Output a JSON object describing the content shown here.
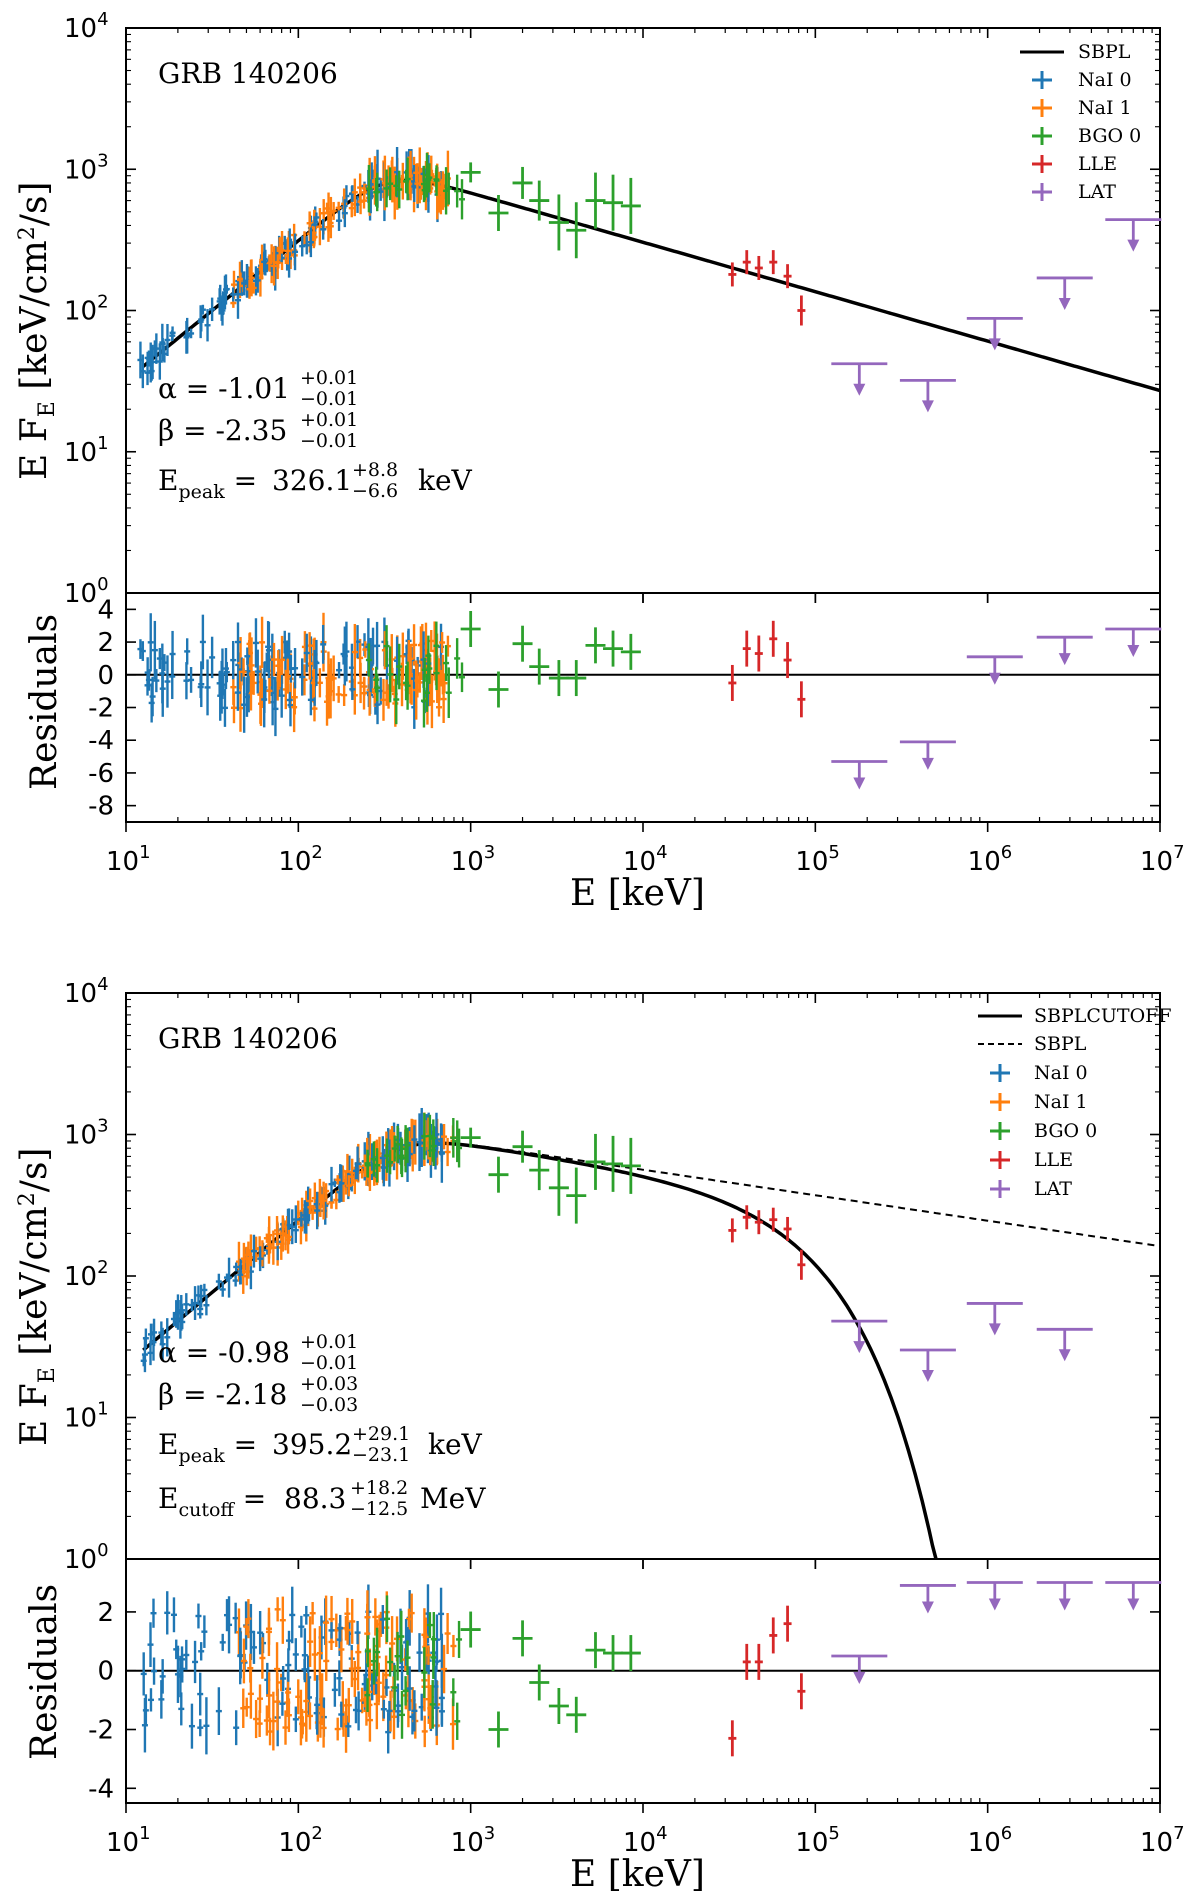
{
  "chart_data": [
    {
      "type": "scatter",
      "title": "GRB 140206",
      "model": "SBPL",
      "xlabel": "E [keV]",
      "ylabel_main": "E F_E [keV/cm²/s]",
      "ylabel_resid": "Residuals",
      "xlim": [
        10,
        10000000
      ],
      "ylim_main": [
        1,
        10000
      ],
      "ylim_resid": [
        -9,
        5
      ],
      "x_ticks": [
        "10^1",
        "10^2",
        "10^3",
        "10^4",
        "10^5",
        "10^6",
        "10^7"
      ],
      "y_ticks_main": [
        "10^0",
        "10^1",
        "10^2",
        "10^3",
        "10^4"
      ],
      "resid_ticks": [
        4,
        2,
        0,
        -2,
        -4,
        -6,
        -8
      ],
      "legend": [
        "SBPL",
        "NaI 0",
        "NaI 1",
        "BGO 0",
        "LLE",
        "LAT"
      ],
      "params": {
        "alpha": {
          "label": "α = -1.01",
          "up": "+0.01",
          "lo": "−0.01"
        },
        "beta": {
          "label": "β = -2.35",
          "up": "+0.01",
          "lo": "−0.01"
        },
        "epeak": {
          "label": "326.1",
          "up": "+8.8",
          "lo": "−6.6",
          "unit": "keV"
        }
      },
      "model_curve": {
        "alpha": -1.01,
        "beta": -2.35,
        "epeak_keV": 326.1,
        "norm_at_epeak": 800
      },
      "series": [
        {
          "name": "BGO 0",
          "color": "#2ca02c",
          "points": [
            [
              1000,
              950,
              10,
              2.8
            ],
            [
              1450,
              490,
              18,
              -0.9
            ],
            [
              2000,
              800,
              16,
              1.9
            ],
            [
              2500,
              600,
              20,
              0.5
            ],
            [
              3250,
              420,
              28,
              -0.2
            ],
            [
              4100,
              370,
              28,
              -0.2
            ],
            [
              5300,
              600,
              28,
              1.8
            ],
            [
              6700,
              580,
              28,
              1.6
            ],
            [
              8500,
              550,
              28,
              1.4
            ]
          ]
        },
        {
          "name": "LLE",
          "color": "#d62728",
          "points": [
            [
              33000,
              180,
              12,
              -0.5
            ],
            [
              40000,
              220,
              12,
              1.6
            ],
            [
              47000,
              200,
              12,
              1.3
            ],
            [
              57000,
              220,
              12,
              2.2
            ],
            [
              69000,
              175,
              12,
              0.9
            ],
            [
              83000,
              100,
              15,
              -1.5
            ]
          ]
        },
        {
          "name": "LAT",
          "color": "#9467bd",
          "upper_limits": [
            [
              180000.0,
              42,
              -5.3
            ],
            [
              450000.0,
              32,
              -4.1
            ],
            [
              1100000.0,
              88,
              1.1
            ],
            [
              2800000.0,
              170,
              2.3
            ],
            [
              7000000.0,
              440,
              2.8
            ]
          ]
        }
      ]
    },
    {
      "type": "scatter",
      "title": "GRB 140206",
      "model": "SBPLCUTOFF",
      "xlabel": "E [keV]",
      "ylabel_main": "E F_E [keV/cm²/s]",
      "ylabel_resid": "Residuals",
      "xlim": [
        10,
        10000000
      ],
      "ylim_main": [
        1,
        10000
      ],
      "ylim_resid": [
        -4.5,
        3.8
      ],
      "x_ticks": [
        "10^1",
        "10^2",
        "10^3",
        "10^4",
        "10^5",
        "10^6",
        "10^7"
      ],
      "y_ticks_main": [
        "10^0",
        "10^1",
        "10^2",
        "10^3",
        "10^4"
      ],
      "resid_ticks": [
        2,
        0,
        -2,
        -4
      ],
      "legend": [
        "SBPLCUTOFF",
        "SBPL",
        "NaI 0",
        "NaI 1",
        "BGO 0",
        "LLE",
        "LAT"
      ],
      "params": {
        "alpha": {
          "label": "α = -0.98",
          "up": "+0.01",
          "lo": "−0.01"
        },
        "beta": {
          "label": "β = -2.18",
          "up": "+0.03",
          "lo": "−0.03"
        },
        "epeak": {
          "label": "395.2",
          "up": "+29.1",
          "lo": "−23.1",
          "unit": "keV"
        },
        "ecutoff": {
          "label": "88.3",
          "up": "+18.2",
          "lo": "−12.5",
          "unit": "MeV"
        }
      },
      "model_curve": {
        "alpha": -0.98,
        "beta": -2.18,
        "epeak_keV": 395.2,
        "norm_at_epeak": 800,
        "ecut_keV": 88300
      },
      "series": [
        {
          "name": "BGO 0",
          "color": "#2ca02c",
          "points": [
            [
              1000,
              950,
              10,
              1.4
            ],
            [
              1450,
              520,
              18,
              -2.0
            ],
            [
              2000,
              820,
              16,
              1.1
            ],
            [
              2500,
              560,
              20,
              -0.4
            ],
            [
              3250,
              420,
              28,
              -1.2
            ],
            [
              4100,
              370,
              28,
              -1.5
            ],
            [
              5300,
              640,
              28,
              0.7
            ],
            [
              6700,
              620,
              28,
              0.6
            ],
            [
              8500,
              600,
              28,
              0.6
            ]
          ]
        },
        {
          "name": "LLE",
          "color": "#d62728",
          "points": [
            [
              33000,
              210,
              12,
              -2.3
            ],
            [
              40000,
              260,
              12,
              0.3
            ],
            [
              47000,
              240,
              12,
              0.3
            ],
            [
              57000,
              250,
              12,
              1.2
            ],
            [
              69000,
              215,
              12,
              1.6
            ],
            [
              83000,
              120,
              15,
              -0.7
            ]
          ]
        },
        {
          "name": "LAT",
          "color": "#9467bd",
          "upper_limits": [
            [
              180000.0,
              48,
              0.5
            ],
            [
              450000.0,
              30,
              2.9
            ],
            [
              1100000.0,
              64,
              3.0
            ],
            [
              2800000.0,
              42,
              3.0
            ],
            [
              7000000.0,
              null,
              3.0
            ]
          ]
        }
      ]
    }
  ]
}
